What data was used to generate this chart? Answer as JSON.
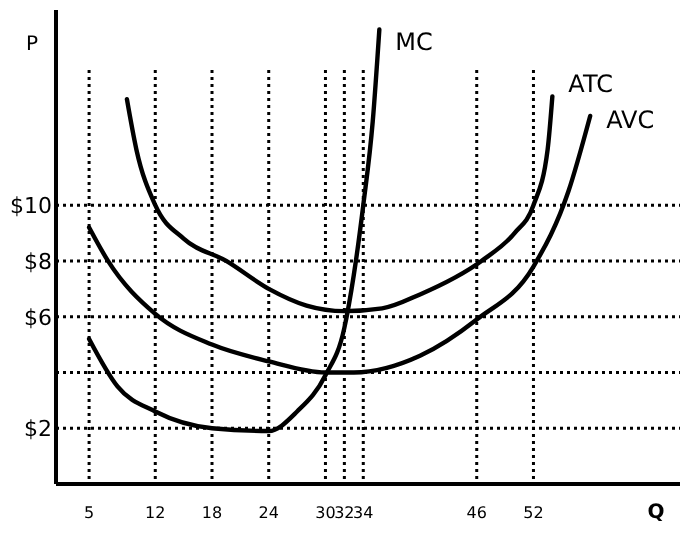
{
  "chart_data": {
    "type": "line",
    "xlabel": "Q",
    "ylabel": "P",
    "xlim": [
      1.5,
      67.5
    ],
    "xticks": [
      5,
      12,
      18,
      24,
      30,
      32,
      34,
      46,
      52
    ],
    "ylim": [
      0,
      17
    ],
    "yticks": [
      {
        "value": 2,
        "label": "$2"
      },
      {
        "value": 4,
        "label": null
      },
      {
        "value": 6,
        "label": "$6"
      },
      {
        "value": 8,
        "label": "$8"
      },
      {
        "value": 10,
        "label": "$10"
      }
    ],
    "grid": true,
    "line_style": "solid",
    "marker": "none",
    "series": [
      {
        "name": "MC",
        "color": "#000000",
        "x": [
          5,
          8,
          12,
          18,
          24,
          27,
          30,
          32,
          33,
          34,
          35,
          35.7
        ],
        "values": [
          5.2,
          3.5,
          2.6,
          2.0,
          1.9,
          2.6,
          3.9,
          5.6,
          7.5,
          10,
          13,
          16.3
        ]
      },
      {
        "name": "ATC",
        "color": "#000000",
        "x": [
          9,
          10,
          12,
          15,
          19.5,
          24,
          28,
          32,
          36,
          40,
          46.5,
          50,
          52,
          53.5,
          54
        ],
        "values": [
          13.8,
          12,
          10,
          8.8,
          8,
          7,
          6.4,
          6.2,
          6.3,
          6.8,
          8,
          9,
          10,
          12,
          13.9
        ]
      },
      {
        "name": "AVC",
        "color": "#000000",
        "x": [
          5,
          7,
          12,
          18,
          24,
          30,
          33,
          40,
          46,
          52,
          55.7,
          58
        ],
        "values": [
          9.2,
          8,
          6.1,
          5,
          4.4,
          4,
          4,
          4.6,
          5.9,
          7.8,
          10.5,
          13.2
        ]
      }
    ]
  }
}
